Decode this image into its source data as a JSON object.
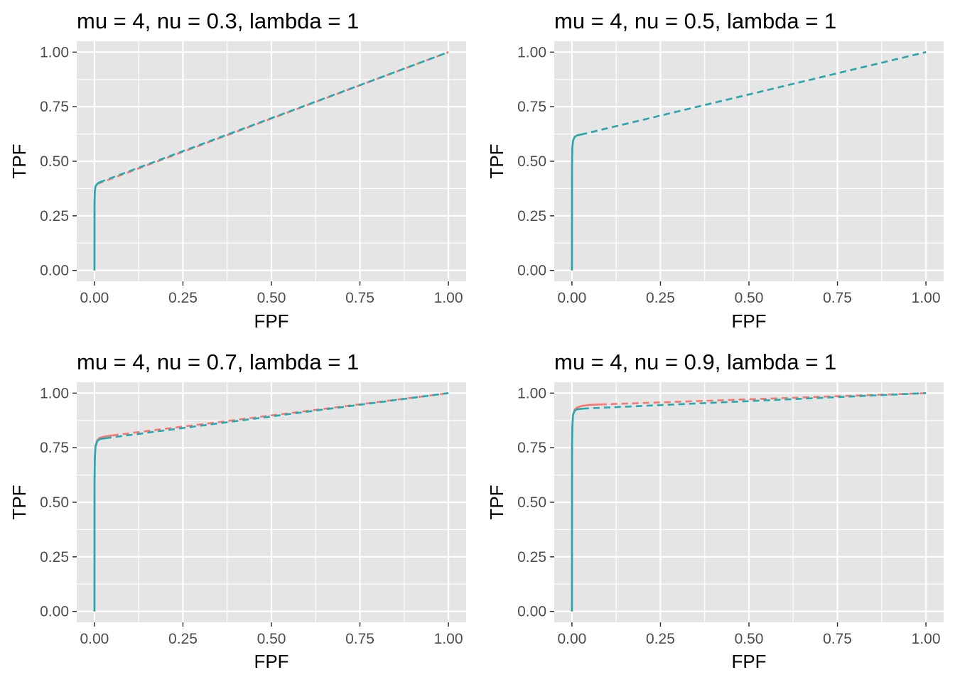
{
  "colors": {
    "panel_background": "#e5e5e5",
    "grid": "#ffffff",
    "tick_label": "#4d4d4d",
    "tick_mark": "#333333",
    "series_a": "#f8766d",
    "series_b": "#22aab3"
  },
  "chart_data": [
    {
      "type": "line",
      "title": "mu = 4, nu = 0.3, lambda = 1",
      "xlabel": "FPF",
      "ylabel": "TPF",
      "xlim": [
        0,
        1
      ],
      "ylim": [
        0,
        1
      ],
      "x_ticks": [
        "0.00",
        "0.25",
        "0.50",
        "0.75",
        "1.00"
      ],
      "y_ticks": [
        "0.00",
        "0.25",
        "0.50",
        "0.75",
        "1.00"
      ],
      "grid": true,
      "legend": "none",
      "series": [
        {
          "color": "#f8766d",
          "curve": {
            "x": [
              0,
              0.0003,
              0.001,
              0.003,
              0.008
            ],
            "y": [
              0,
              0.3,
              0.36,
              0.385,
              0.396
            ]
          },
          "dashed": {
            "x": [
              0.008,
              1
            ],
            "y": [
              0.396,
              1
            ]
          }
        },
        {
          "color": "#22aab3",
          "curve": {
            "x": [
              0,
              0.0003,
              0.001,
              0.003,
              0.008,
              0.013
            ],
            "y": [
              0,
              0.3,
              0.36,
              0.385,
              0.397,
              0.403
            ]
          },
          "dashed": {
            "x": [
              0.013,
              1
            ],
            "y": [
              0.403,
              1
            ]
          }
        }
      ]
    },
    {
      "type": "line",
      "title": "mu = 4, nu = 0.5, lambda = 1",
      "xlabel": "FPF",
      "ylabel": "TPF",
      "xlim": [
        0,
        1
      ],
      "ylim": [
        0,
        1
      ],
      "x_ticks": [
        "0.00",
        "0.25",
        "0.50",
        "0.75",
        "1.00"
      ],
      "y_ticks": [
        "0.00",
        "0.25",
        "0.50",
        "0.75",
        "1.00"
      ],
      "grid": true,
      "legend": "none",
      "series": [
        {
          "color": "#f8766d",
          "curve": {
            "x": [
              0,
              0.0003,
              0.001,
              0.003,
              0.008,
              0.015,
              0.025
            ],
            "y": [
              0,
              0.48,
              0.56,
              0.595,
              0.612,
              0.619,
              0.622
            ]
          },
          "dashed": {
            "x": [
              0.025,
              1
            ],
            "y": [
              0.622,
              1
            ]
          }
        },
        {
          "color": "#22aab3",
          "curve": {
            "x": [
              0,
              0.0003,
              0.001,
              0.003,
              0.008,
              0.015,
              0.025
            ],
            "y": [
              0,
              0.48,
              0.56,
              0.595,
              0.612,
              0.619,
              0.622
            ]
          },
          "dashed": {
            "x": [
              0.025,
              1
            ],
            "y": [
              0.622,
              1
            ]
          }
        }
      ]
    },
    {
      "type": "line",
      "title": "mu = 4, nu = 0.7, lambda = 1",
      "xlabel": "FPF",
      "ylabel": "TPF",
      "xlim": [
        0,
        1
      ],
      "ylim": [
        0,
        1
      ],
      "x_ticks": [
        "0.00",
        "0.25",
        "0.50",
        "0.75",
        "1.00"
      ],
      "y_ticks": [
        "0.00",
        "0.25",
        "0.50",
        "0.75",
        "1.00"
      ],
      "grid": true,
      "legend": "none",
      "series": [
        {
          "color": "#f8766d",
          "curve": {
            "x": [
              0,
              0.0003,
              0.001,
              0.003,
              0.008,
              0.015,
              0.03,
              0.05
            ],
            "y": [
              0,
              0.6,
              0.7,
              0.76,
              0.785,
              0.795,
              0.802,
              0.806
            ]
          },
          "dashed": {
            "x": [
              0.05,
              1
            ],
            "y": [
              0.806,
              1
            ]
          }
        },
        {
          "color": "#22aab3",
          "curve": {
            "x": [
              0,
              0.0003,
              0.001,
              0.003,
              0.008,
              0.015,
              0.03
            ],
            "y": [
              0,
              0.6,
              0.7,
              0.755,
              0.78,
              0.789,
              0.793
            ]
          },
          "dashed": {
            "x": [
              0.03,
              1
            ],
            "y": [
              0.793,
              1
            ]
          }
        }
      ]
    },
    {
      "type": "line",
      "title": "mu = 4, nu = 0.9, lambda = 1",
      "xlabel": "FPF",
      "ylabel": "TPF",
      "xlim": [
        0,
        1
      ],
      "ylim": [
        0,
        1
      ],
      "x_ticks": [
        "0.00",
        "0.25",
        "0.50",
        "0.75",
        "1.00"
      ],
      "y_ticks": [
        "0.00",
        "0.25",
        "0.50",
        "0.75",
        "1.00"
      ],
      "grid": true,
      "legend": "none",
      "series": [
        {
          "color": "#f8766d",
          "curve": {
            "x": [
              0,
              0.0003,
              0.001,
              0.003,
              0.008,
              0.015,
              0.03,
              0.05,
              0.08
            ],
            "y": [
              0,
              0.72,
              0.84,
              0.9,
              0.925,
              0.935,
              0.942,
              0.946,
              0.948
            ]
          },
          "dashed": {
            "x": [
              0.08,
              1
            ],
            "y": [
              0.948,
              1
            ]
          }
        },
        {
          "color": "#22aab3",
          "curve": {
            "x": [
              0,
              0.0003,
              0.001,
              0.003,
              0.008,
              0.015,
              0.03
            ],
            "y": [
              0,
              0.72,
              0.84,
              0.9,
              0.92,
              0.926,
              0.929
            ]
          },
          "dashed": {
            "x": [
              0.03,
              1
            ],
            "y": [
              0.929,
              1
            ]
          }
        }
      ]
    }
  ]
}
